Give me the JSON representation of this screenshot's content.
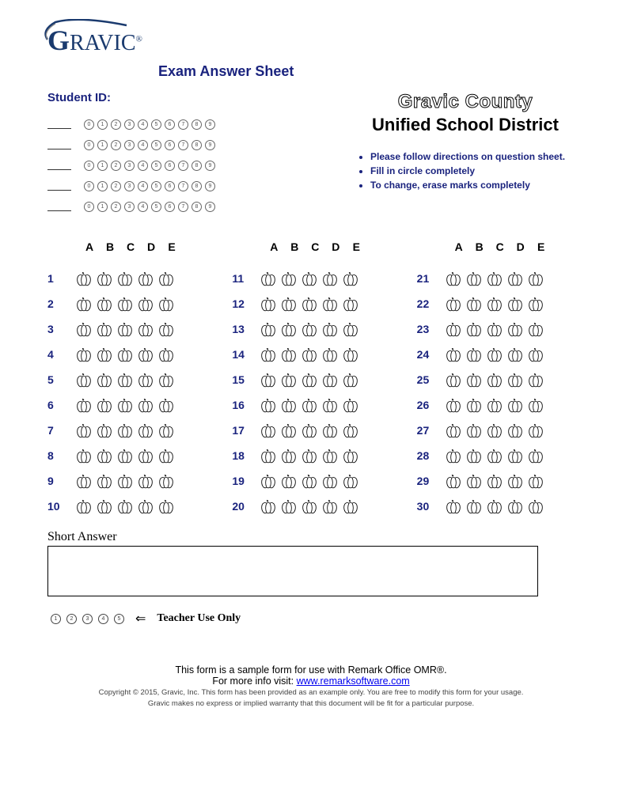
{
  "logo": {
    "text": "GRAVIC",
    "trademark": "®"
  },
  "title": "Exam Answer Sheet",
  "student_id_label": "Student ID:",
  "student_id": {
    "rows": 5,
    "digits": [
      "0",
      "1",
      "2",
      "3",
      "4",
      "5",
      "6",
      "7",
      "8",
      "9"
    ]
  },
  "district": {
    "line1": "Gravic County",
    "line2": "Unified School District"
  },
  "instructions": [
    "Please follow directions on question sheet.",
    "Fill in circle completely",
    "To change, erase marks completely"
  ],
  "answer_columns": {
    "headers": [
      "A",
      "B",
      "C",
      "D",
      "E"
    ],
    "columns": [
      {
        "start": 1,
        "end": 10
      },
      {
        "start": 11,
        "end": 20
      },
      {
        "start": 21,
        "end": 30
      }
    ],
    "options_per_question": 5
  },
  "short_answer_label": "Short Answer",
  "teacher": {
    "bubbles": [
      "1",
      "2",
      "3",
      "4",
      "5"
    ],
    "label": "Teacher Use Only"
  },
  "footer": {
    "line1": "This form is a sample form for use with Remark Office OMR®.",
    "line2_prefix": "For more info visit: ",
    "link_text": "www.remarksoftware.com",
    "copyright": "Copyright © 2015, Gravic, Inc. This form has been provided as an example only. You are free to modify this form for your usage.",
    "disclaimer": "Gravic makes no express or implied warranty that this document will be fit for a particular purpose."
  },
  "colors": {
    "primary_blue": "#1a237e",
    "logo_blue": "#1a3a6e",
    "text_black": "#000000",
    "bubble_border": "#666666",
    "link": "#0000EE",
    "background": "#ffffff"
  },
  "typography": {
    "title_fontsize": 18,
    "label_fontsize": 15,
    "instruction_fontsize": 12,
    "qnum_fontsize": 14,
    "footer_fontsize": 11
  }
}
